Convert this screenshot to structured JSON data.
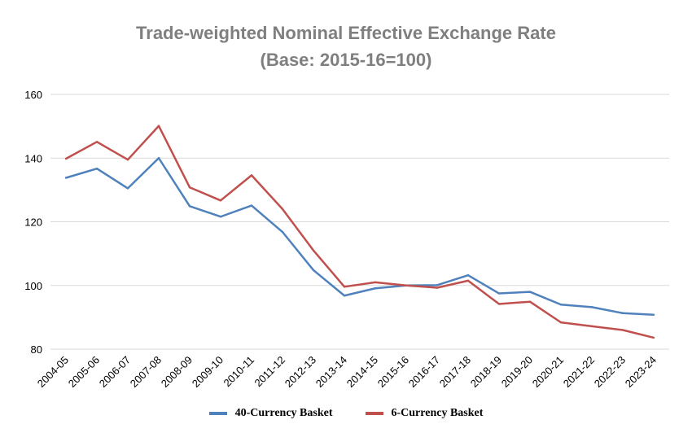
{
  "chart_data": {
    "type": "line",
    "title": "Trade-weighted Nominal Effective Exchange Rate",
    "subtitle": "(Base: 2015-16=100)",
    "xlabel": "",
    "ylabel": "",
    "ylim": [
      80,
      160
    ],
    "yticks": [
      80,
      100,
      120,
      140,
      160
    ],
    "grid": true,
    "legend": "bottom",
    "categories": [
      "2004-05",
      "2005-06",
      "2006-07",
      "2007-08",
      "2008-09",
      "2009-10",
      "2010-11",
      "2011-12",
      "2012-13",
      "2013-14",
      "2014-15",
      "2015-16",
      "2016-17",
      "2017-18",
      "2018-19",
      "2019-20",
      "2020-21",
      "2021-22",
      "2022-23",
      "2023-24"
    ],
    "series": [
      {
        "name": "40-Currency Basket",
        "color": "#4f81bd",
        "values": [
          133.8,
          136.7,
          130.5,
          140.0,
          124.9,
          121.6,
          125.1,
          116.8,
          104.8,
          96.8,
          99.1,
          100.0,
          100.1,
          103.2,
          97.5,
          98.0,
          94.0,
          93.2,
          91.3,
          90.8
        ]
      },
      {
        "name": "6-Currency Basket",
        "color": "#c0504d",
        "values": [
          139.8,
          145.1,
          139.5,
          150.1,
          130.8,
          126.7,
          134.6,
          124.0,
          111.0,
          99.6,
          101.0,
          100.0,
          99.3,
          101.5,
          94.2,
          94.9,
          88.4,
          87.2,
          86.0,
          83.6
        ]
      }
    ]
  }
}
